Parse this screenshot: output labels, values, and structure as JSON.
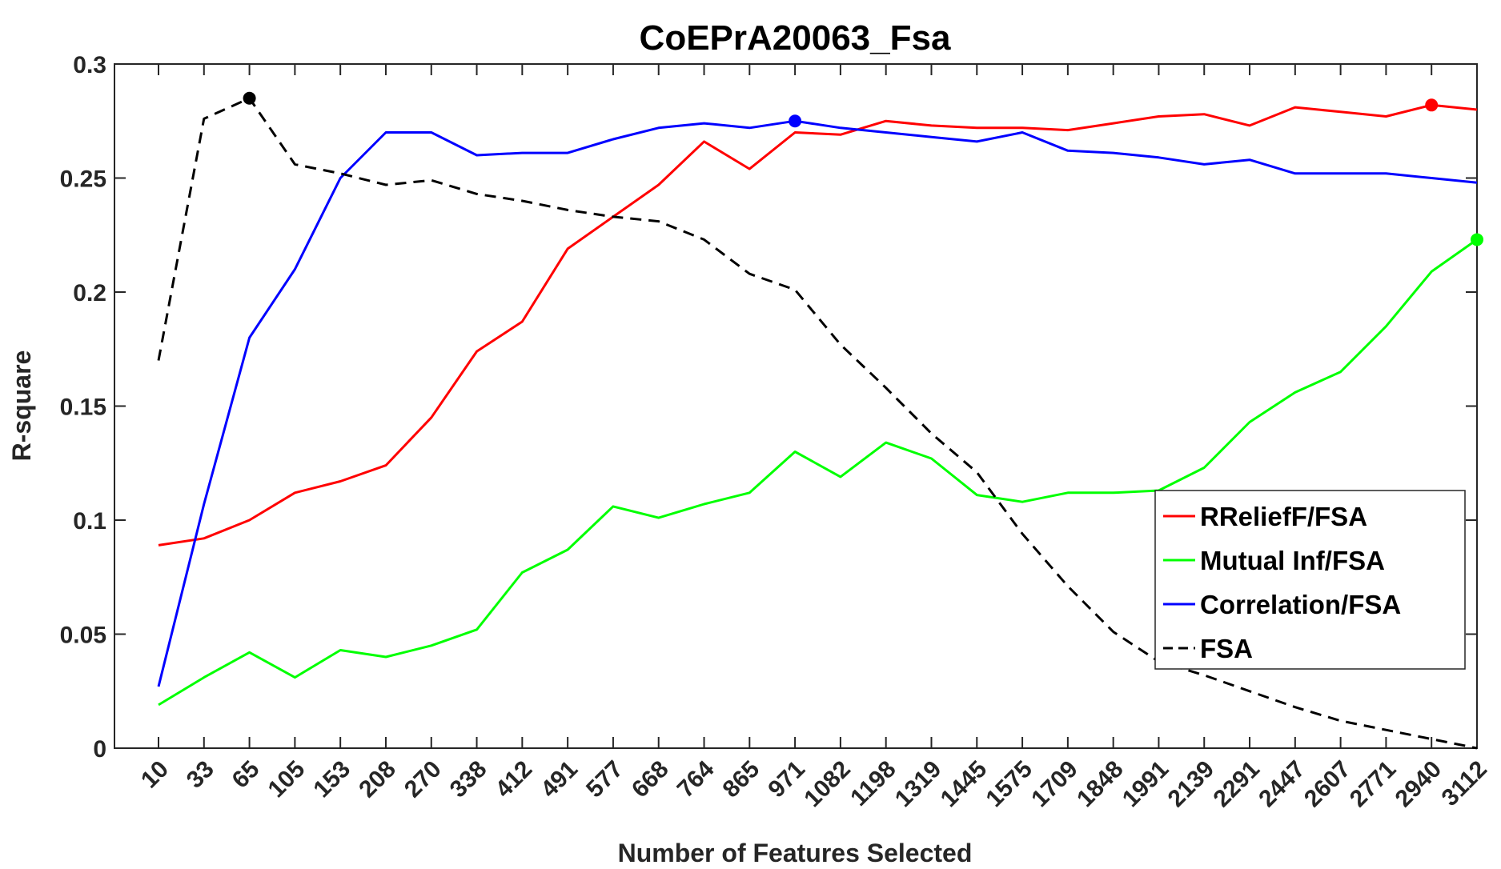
{
  "chart_data": {
    "type": "line",
    "title": "CoEPrA20063_Fsa",
    "xlabel": "Number of Features Selected",
    "ylabel": "R-square",
    "ylim": [
      0,
      0.3
    ],
    "yticks": [
      0,
      0.05,
      0.1,
      0.15,
      0.2,
      0.25,
      0.3
    ],
    "ytick_labels": [
      "0",
      "0.05",
      "0.1",
      "0.15",
      "0.2",
      "0.25",
      "0.3"
    ],
    "x": [
      "10",
      "33",
      "65",
      "105",
      "153",
      "208",
      "270",
      "338",
      "412",
      "491",
      "577",
      "668",
      "764",
      "865",
      "971",
      "1082",
      "1198",
      "1319",
      "1445",
      "1575",
      "1709",
      "1848",
      "1991",
      "2139",
      "2291",
      "2447",
      "2607",
      "2771",
      "2940",
      "3112"
    ],
    "grid": false,
    "legend_position": "bottom-right",
    "series": [
      {
        "name": "RReliefF/FSA",
        "color": "#ff0000",
        "dash": "solid",
        "values": [
          0.089,
          0.092,
          0.1,
          0.112,
          0.117,
          0.124,
          0.145,
          0.174,
          0.187,
          0.219,
          0.233,
          0.247,
          0.266,
          0.254,
          0.27,
          0.269,
          0.275,
          0.273,
          0.272,
          0.272,
          0.271,
          0.274,
          0.277,
          0.278,
          0.273,
          0.281,
          0.279,
          0.277,
          0.282,
          0.28
        ],
        "marker_index": 28
      },
      {
        "name": "Mutual Inf/FSA",
        "color": "#00ff00",
        "dash": "solid",
        "values": [
          0.019,
          0.031,
          0.042,
          0.031,
          0.043,
          0.04,
          0.045,
          0.052,
          0.077,
          0.087,
          0.106,
          0.101,
          0.107,
          0.112,
          0.13,
          0.119,
          0.134,
          0.127,
          0.111,
          0.108,
          0.112,
          0.112,
          0.113,
          0.123,
          0.143,
          0.156,
          0.165,
          0.185,
          0.209,
          0.223
        ],
        "marker_index": 29
      },
      {
        "name": "Correlation/FSA",
        "color": "#0000ff",
        "dash": "solid",
        "values": [
          0.027,
          0.107,
          0.18,
          0.21,
          0.25,
          0.27,
          0.27,
          0.26,
          0.261,
          0.261,
          0.267,
          0.272,
          0.274,
          0.272,
          0.275,
          0.272,
          0.27,
          0.268,
          0.266,
          0.27,
          0.262,
          0.261,
          0.259,
          0.256,
          0.258,
          0.252,
          0.252,
          0.252,
          0.25,
          0.248
        ],
        "marker_index": 14
      },
      {
        "name": "FSA",
        "color": "#000000",
        "dash": "dashed",
        "values": [
          0.17,
          0.276,
          0.285,
          0.256,
          0.252,
          0.247,
          0.249,
          0.243,
          0.24,
          0.236,
          0.233,
          0.231,
          0.223,
          0.208,
          0.201,
          0.177,
          0.158,
          0.138,
          0.121,
          0.094,
          0.071,
          0.051,
          0.038,
          0.032,
          0.025,
          0.018,
          0.012,
          0.008,
          0.004,
          0.0
        ],
        "marker_index": 2
      }
    ]
  }
}
